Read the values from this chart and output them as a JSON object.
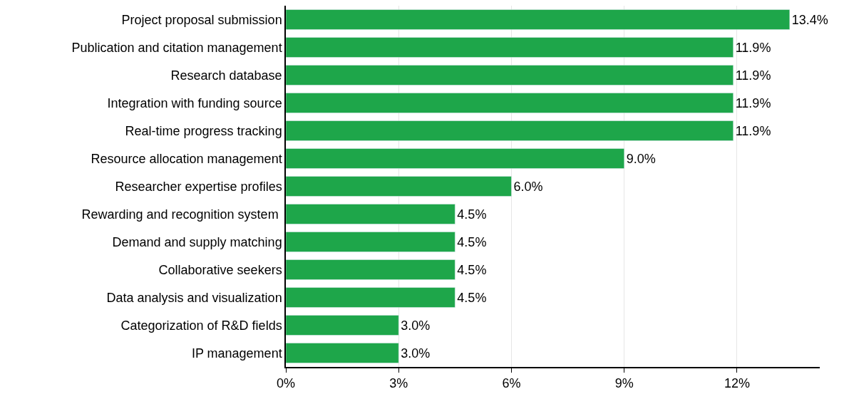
{
  "chart_data": {
    "type": "bar",
    "orientation": "horizontal",
    "categories": [
      "Project proposal submission",
      "Publication and citation management",
      "Research database",
      "Integration with funding source",
      "Real-time progress tracking",
      "Resource allocation management",
      "Researcher expertise profiles",
      "Rewarding and recognition system ",
      "Demand and supply matching",
      "Collaborative seekers",
      "Data analysis and visualization",
      "Categorization of R&D fields",
      "IP management"
    ],
    "values": [
      13.4,
      11.9,
      11.9,
      11.9,
      11.9,
      9.0,
      6.0,
      4.5,
      4.5,
      4.5,
      4.5,
      3.0,
      3.0
    ],
    "value_labels": [
      "13.4%",
      "11.9%",
      "11.9%",
      "11.9%",
      "11.9%",
      "9.0%",
      "6.0%",
      "4.5%",
      "4.5%",
      "4.5%",
      "4.5%",
      "3.0%",
      "3.0%"
    ],
    "color": "#1ea64a",
    "xlim": [
      0,
      14.2
    ],
    "xticks": [
      {
        "value": 0,
        "label": "0%"
      },
      {
        "value": 3,
        "label": "3%"
      },
      {
        "value": 6,
        "label": "6%"
      },
      {
        "value": 9,
        "label": "9%"
      },
      {
        "value": 12,
        "label": "12%"
      }
    ],
    "grid": "x"
  }
}
